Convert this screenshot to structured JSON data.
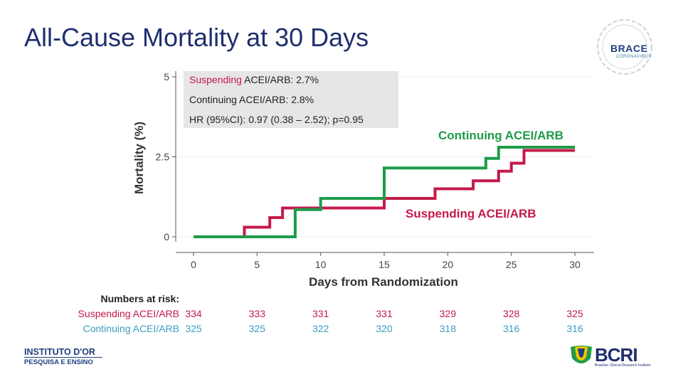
{
  "slide": {
    "title": "All-Cause Mortality at 30 Days"
  },
  "chart_data": {
    "type": "line",
    "step": true,
    "xlabel": "Days from Randomization",
    "ylabel": "Mortality (%)",
    "xlim": [
      0,
      30
    ],
    "ylim": [
      0,
      5
    ],
    "xticks": [
      "0",
      "5",
      "10",
      "15",
      "20",
      "25",
      "30"
    ],
    "xtick_values": [
      0,
      5,
      10,
      15,
      20,
      25,
      30
    ],
    "yticks": [
      "0",
      "2.5",
      "5"
    ],
    "ytick_values": [
      0,
      2.5,
      5
    ],
    "series": [
      {
        "name": "Suspending ACEI/ARB",
        "color": "#c41a4a",
        "x": [
          0,
          4,
          4,
          6,
          6,
          7,
          7,
          15,
          15,
          19,
          19,
          22,
          22,
          24,
          24,
          25,
          25,
          26,
          26,
          30
        ],
        "y": [
          0,
          0,
          0.3,
          0.3,
          0.6,
          0.6,
          0.9,
          0.9,
          1.2,
          1.2,
          1.5,
          1.5,
          1.75,
          1.75,
          2.05,
          2.05,
          2.3,
          2.3,
          2.7,
          2.7
        ]
      },
      {
        "name": "Continuing ACEI/ARB",
        "color": "#1e9b4a",
        "x": [
          0,
          8,
          8,
          10,
          10,
          15,
          15,
          23,
          23,
          24,
          24,
          30
        ],
        "y": [
          0,
          0,
          0.85,
          0.85,
          1.2,
          1.2,
          2.15,
          2.15,
          2.45,
          2.45,
          2.8,
          2.8
        ]
      }
    ],
    "curve_labels": [
      {
        "text": "Continuing ACEI/ARB",
        "color": "#1e9b4a"
      },
      {
        "text": "Suspending ACEI/ARB",
        "color": "#c41a4a"
      }
    ],
    "annotation": {
      "line1_key": "Suspending",
      "line1_rest": " ACEI/ARB: ",
      "line1_val": "2.7%",
      "line2_key": "Continuing",
      "line2_rest": " ACEI/ARB: ",
      "line2_val": "2.8%",
      "line3_key": "HR (95%CI):",
      "line3_val": " 0.97 (0.38 – 2.52); p=0.95"
    },
    "risk_table": {
      "title": "Numbers at risk:",
      "rows": [
        {
          "label": "Suspending ACEI/ARB",
          "color": "#c41a4a",
          "values": [
            "334",
            "333",
            "331",
            "331",
            "329",
            "328",
            "325"
          ]
        },
        {
          "label": "Continuing ACEI/ARB",
          "color": "#3c9ec0",
          "values": [
            "325",
            "325",
            "322",
            "320",
            "318",
            "316",
            "316"
          ]
        }
      ]
    }
  },
  "logos": {
    "brace_word": "BRACE",
    "brace_sub": "CORONAVIRUS",
    "instituto_top": "INSTITUTO D'OR",
    "instituto_bottom": "PESQUISA E ENSINO",
    "bcri_word": "BCRI",
    "bcri_sub": "Brazilian Clinical Research Institute"
  }
}
